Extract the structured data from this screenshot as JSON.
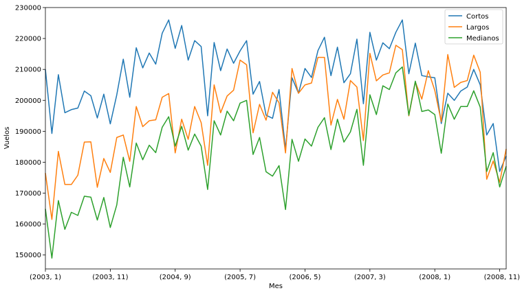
{
  "chart_data": {
    "type": "line",
    "title": "",
    "xlabel": "Mes",
    "ylabel": "Vuelos",
    "ylim": [
      145500,
      230000
    ],
    "yticks": [
      150000,
      160000,
      170000,
      180000,
      190000,
      200000,
      210000,
      220000,
      230000
    ],
    "ytick_labels": [
      "150000",
      "160000",
      "170000",
      "180000",
      "190000",
      "200000",
      "210000",
      "220000",
      "230000"
    ],
    "xtick_labels": [
      "(2003, 1)",
      "(2003, 11)",
      "(2004, 9)",
      "(2005, 7)",
      "(2006, 5)",
      "(2007, 3)",
      "(2008, 1)",
      "(2008, 11)"
    ],
    "xtick_index": [
      0,
      10,
      20,
      30,
      40,
      50,
      60,
      70
    ],
    "grid": false,
    "legend_position": "top-right",
    "colors": {
      "Cortos": "#1f77b4",
      "Largos": "#ff7f0e",
      "Medianos": "#2ca02c"
    },
    "series": [
      {
        "name": "Cortos",
        "values": [
          210000,
          189300,
          208300,
          196000,
          197000,
          197500,
          203000,
          201500,
          194300,
          202000,
          192400,
          201800,
          213300,
          201000,
          217000,
          210500,
          215300,
          211700,
          221700,
          226000,
          216800,
          224200,
          213000,
          219300,
          217400,
          195000,
          218700,
          209600,
          216600,
          212000,
          216000,
          219300,
          202000,
          206100,
          195200,
          194200,
          203500,
          184200,
          207300,
          202300,
          210300,
          207400,
          216100,
          220400,
          208000,
          217200,
          205700,
          208600,
          219800,
          198900,
          222000,
          213000,
          218600,
          216700,
          222000,
          226000,
          208600,
          218500,
          208000,
          207600,
          207300,
          192500,
          202300,
          200000,
          203000,
          204300,
          210000,
          205000,
          188800,
          192500,
          177000,
          182000
        ],
        "note": ""
      },
      {
        "name": "Largos",
        "values": [
          176500,
          161500,
          183500,
          172800,
          172800,
          175800,
          186500,
          186600,
          171900,
          181200,
          176700,
          188000,
          188800,
          180300,
          198000,
          191500,
          193400,
          193700,
          201000,
          202200,
          183000,
          193900,
          187400,
          198000,
          192800,
          179000,
          205000,
          196000,
          201400,
          203300,
          213000,
          211500,
          189500,
          198700,
          193600,
          202600,
          199200,
          183000,
          210300,
          202300,
          205000,
          205600,
          213900,
          213900,
          192000,
          200300,
          193900,
          206400,
          204300,
          187000,
          215200,
          206300,
          208200,
          208900,
          217800,
          216400,
          195000,
          206000,
          200400,
          209600,
          203200,
          193100,
          214800,
          204200,
          205800,
          206400,
          214600,
          209100,
          174500,
          180400,
          173500,
          184300
        ]
      },
      {
        "name": "Medianos",
        "values": [
          164900,
          149000,
          167600,
          158300,
          163800,
          162800,
          169000,
          168700,
          161300,
          168600,
          158900,
          166200,
          181600,
          172000,
          186200,
          180800,
          185500,
          183100,
          191300,
          194700,
          185200,
          191600,
          183900,
          189100,
          185200,
          171200,
          193400,
          188800,
          196500,
          193400,
          199100,
          200000,
          182500,
          188000,
          176900,
          175500,
          178900,
          164700,
          187400,
          180300,
          187500,
          185200,
          191300,
          194400,
          184100,
          193900,
          186500,
          189800,
          197100,
          179000,
          201800,
          195400,
          204700,
          203500,
          208900,
          210800,
          195200,
          206200,
          196400,
          196900,
          195400,
          182900,
          198800,
          193900,
          198000,
          198000,
          203100,
          197800,
          177000,
          183100,
          172000,
          178700
        ]
      }
    ]
  }
}
